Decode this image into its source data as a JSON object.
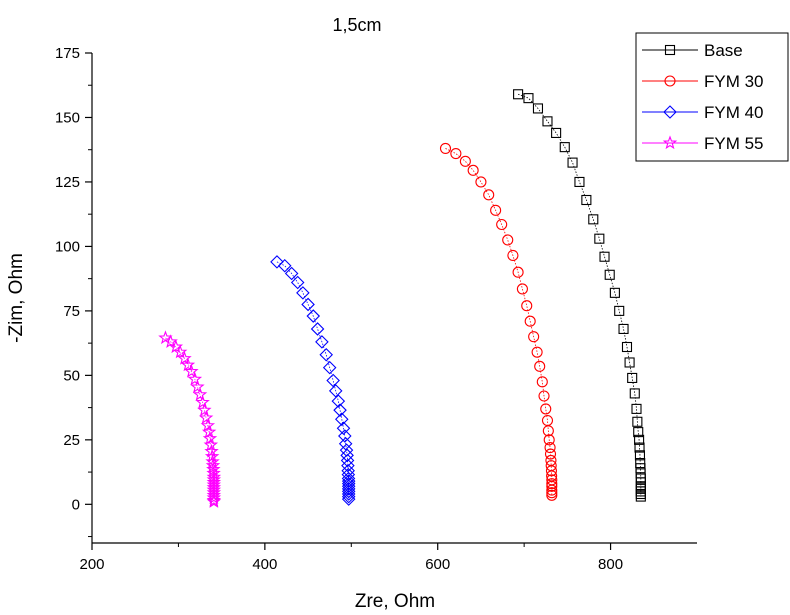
{
  "chart_data": {
    "type": "scatter",
    "title": "1,5cm",
    "xlabel": "Zre, Ohm",
    "ylabel": "-Zim, Ohm",
    "xlim": [
      200,
      900
    ],
    "ylim": [
      -15,
      175
    ],
    "xticks": [
      "200",
      "400",
      "600",
      "800"
    ],
    "xtick_values": [
      200,
      400,
      600,
      800
    ],
    "yticks": [
      "0",
      "25",
      "50",
      "75",
      "100",
      "125",
      "150",
      "175"
    ],
    "ytick_values": [
      0,
      25,
      50,
      75,
      100,
      125,
      150,
      175
    ],
    "legend_position": "top-right",
    "series": [
      {
        "name": "Base",
        "color": "#000000",
        "marker": "square",
        "x": [
          693,
          705,
          716,
          727,
          737,
          747,
          756,
          764,
          772,
          780,
          787,
          793,
          799,
          805,
          810,
          815,
          819,
          822,
          825,
          828,
          830,
          831,
          832,
          833,
          833.5,
          834,
          834.3,
          834.6,
          834.8,
          835,
          835,
          835,
          835,
          835,
          835,
          835
        ],
        "y": [
          159,
          157.5,
          153.5,
          148.5,
          144,
          138.5,
          132.5,
          125,
          118,
          110.5,
          103,
          96,
          89,
          82,
          75,
          68,
          61,
          55,
          49,
          43,
          37,
          32,
          28,
          25,
          22,
          19,
          16,
          14,
          12,
          10,
          8.5,
          7,
          6,
          5,
          4,
          3
        ]
      },
      {
        "name": "FYM 30",
        "color": "#ff0000",
        "marker": "circle",
        "x": [
          609,
          621,
          632,
          641,
          650,
          659,
          667,
          674,
          681,
          687,
          693,
          698,
          703,
          707,
          711,
          715,
          718,
          721,
          723,
          725,
          727,
          728,
          729,
          730,
          730.5,
          731,
          731.3,
          731.6,
          731.8,
          732,
          732,
          732,
          732,
          732,
          732
        ],
        "y": [
          138,
          136,
          133,
          129.5,
          125,
          120,
          114,
          108.5,
          102.5,
          96.5,
          90,
          83.5,
          77,
          71,
          65,
          59,
          53.5,
          47.5,
          42,
          37,
          32.5,
          28.5,
          25,
          22,
          19.5,
          17,
          15,
          13,
          11,
          9.5,
          8,
          7,
          5.5,
          4.5,
          3.5
        ]
      },
      {
        "name": "FYM 40",
        "color": "#0000ff",
        "marker": "diamond",
        "x": [
          414,
          423,
          431,
          438,
          444,
          450,
          456,
          461,
          466,
          471,
          475,
          479,
          482,
          485,
          487,
          489,
          491,
          492.5,
          493.5,
          494.5,
          495.2,
          495.7,
          496.1,
          496.4,
          496.6,
          496.8,
          497,
          497,
          497,
          497,
          497,
          497,
          497,
          497
        ],
        "y": [
          94,
          92.5,
          89.5,
          86,
          82,
          77.5,
          73,
          68,
          63,
          58,
          53,
          48,
          44,
          40,
          36.5,
          33,
          29.5,
          26.5,
          23.5,
          21,
          19,
          17,
          15,
          13,
          11.5,
          10,
          9,
          8,
          7,
          6,
          5,
          4,
          3,
          2
        ]
      },
      {
        "name": "FYM 55",
        "color": "#ff00ff",
        "marker": "star",
        "x": [
          285,
          291,
          297,
          302,
          307,
          311,
          315,
          319,
          322,
          325,
          328,
          330,
          332,
          334,
          335.5,
          336.5,
          337.5,
          338.3,
          339,
          339.5,
          340,
          340.4,
          340.7,
          341,
          341,
          341,
          341,
          341,
          341,
          341,
          341,
          341,
          341,
          341
        ],
        "y": [
          64.5,
          63,
          61,
          59,
          56.5,
          54,
          51.5,
          48.5,
          45.5,
          42.5,
          39.5,
          36.5,
          33.5,
          30.5,
          28,
          25.5,
          23,
          20.5,
          18.5,
          16.5,
          15,
          13.5,
          12,
          10.5,
          9.5,
          8.5,
          7.5,
          6.5,
          5.5,
          4.5,
          3.5,
          2.5,
          1.5,
          1
        ]
      }
    ]
  }
}
